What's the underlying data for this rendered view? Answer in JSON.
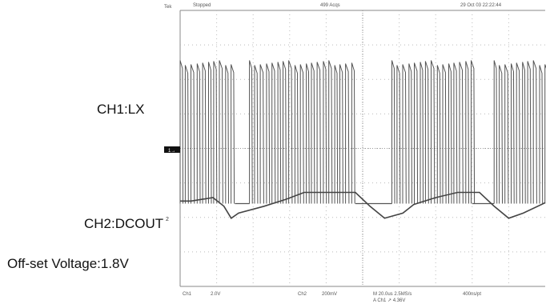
{
  "labels": {
    "ch1": "CH1:LX",
    "ch2": "CH2:DCOUT",
    "offset": "Off-set Voltage:1.8V"
  },
  "scope": {
    "mode_prefix": "Tek",
    "status": "Stopped",
    "acqs": "499 Acqs",
    "datetime": "29 Oct 03 22:22:44",
    "ch1_marker": "1→",
    "ch2_marker": "2",
    "bottom": {
      "ch1": "Ch1",
      "ch1_scale": "2.0V",
      "ch2": "Ch2",
      "ch2_scale": "200mV",
      "m": "M 20.0us 2.5MS/s",
      "m_line2": "A Ch1 ↗ 4.36V",
      "pt": "400ns/pt"
    }
  },
  "chart_data": {
    "type": "line",
    "x_divisions": 10,
    "y_divisions": 8,
    "grid": true,
    "series": [
      {
        "name": "CH1:LX",
        "kind": "switching-burst",
        "bursts_x_div": [
          [
            0.0,
            1.5
          ],
          [
            1.9,
            4.8
          ],
          [
            5.8,
            8.0
          ],
          [
            8.6,
            10.0
          ]
        ]
      },
      {
        "name": "CH2:DCOUT",
        "x_div": [
          0.0,
          0.3,
          0.9,
          1.2,
          1.4,
          1.6,
          2.3,
          2.9,
          3.4,
          4.0,
          4.8,
          5.2,
          5.6,
          6.1,
          6.4,
          7.0,
          7.6,
          8.2,
          8.6,
          9.0,
          9.4,
          10.0
        ],
        "y_div": [
          4.25,
          4.25,
          4.15,
          4.4,
          4.75,
          4.6,
          4.4,
          4.2,
          4.0,
          4.0,
          4.0,
          4.4,
          4.75,
          4.6,
          4.35,
          4.15,
          4.0,
          4.0,
          4.4,
          4.75,
          4.6,
          4.3
        ]
      }
    ]
  }
}
